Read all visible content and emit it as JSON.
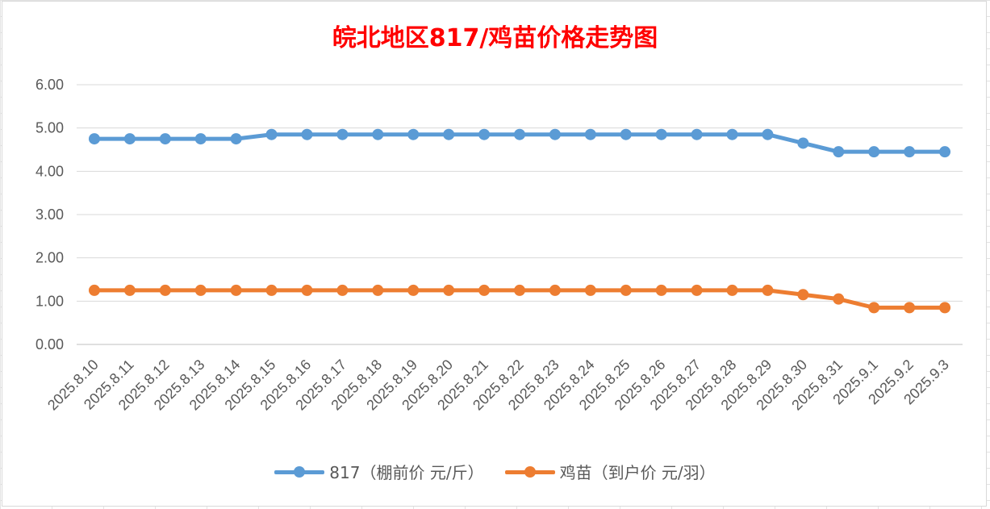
{
  "chart_data": {
    "type": "line",
    "title": "皖北地区817/鸡苗价格走势图",
    "x": [
      "2025.8.10",
      "2025.8.11",
      "2025.8.12",
      "2025.8.13",
      "2025.8.14",
      "2025.8.15",
      "2025.8.16",
      "2025.8.17",
      "2025.8.18",
      "2025.8.19",
      "2025.8.20",
      "2025.8.21",
      "2025.8.22",
      "2025.8.23",
      "2025.8.24",
      "2025.8.25",
      "2025.8.26",
      "2025.8.27",
      "2025.8.28",
      "2025.8.29",
      "2025.8.30",
      "2025.8.31",
      "2025.9.1",
      "2025.9.2",
      "2025.9.3"
    ],
    "yticks": [
      "0.00",
      "1.00",
      "2.00",
      "3.00",
      "4.00",
      "5.00",
      "6.00"
    ],
    "ylim": [
      0,
      6
    ],
    "grid": true,
    "legend_position": "bottom",
    "series": [
      {
        "name": "817（棚前价 元/斤）",
        "color": "#5b9bd5",
        "values": [
          4.75,
          4.75,
          4.75,
          4.75,
          4.75,
          4.85,
          4.85,
          4.85,
          4.85,
          4.85,
          4.85,
          4.85,
          4.85,
          4.85,
          4.85,
          4.85,
          4.85,
          4.85,
          4.85,
          4.85,
          4.65,
          4.45,
          4.45,
          4.45,
          4.45
        ]
      },
      {
        "name": "鸡苗（到户价 元/羽）",
        "color": "#ed7d31",
        "values": [
          1.25,
          1.25,
          1.25,
          1.25,
          1.25,
          1.25,
          1.25,
          1.25,
          1.25,
          1.25,
          1.25,
          1.25,
          1.25,
          1.25,
          1.25,
          1.25,
          1.25,
          1.25,
          1.25,
          1.25,
          1.15,
          1.05,
          0.85,
          0.85,
          0.85
        ]
      }
    ]
  }
}
